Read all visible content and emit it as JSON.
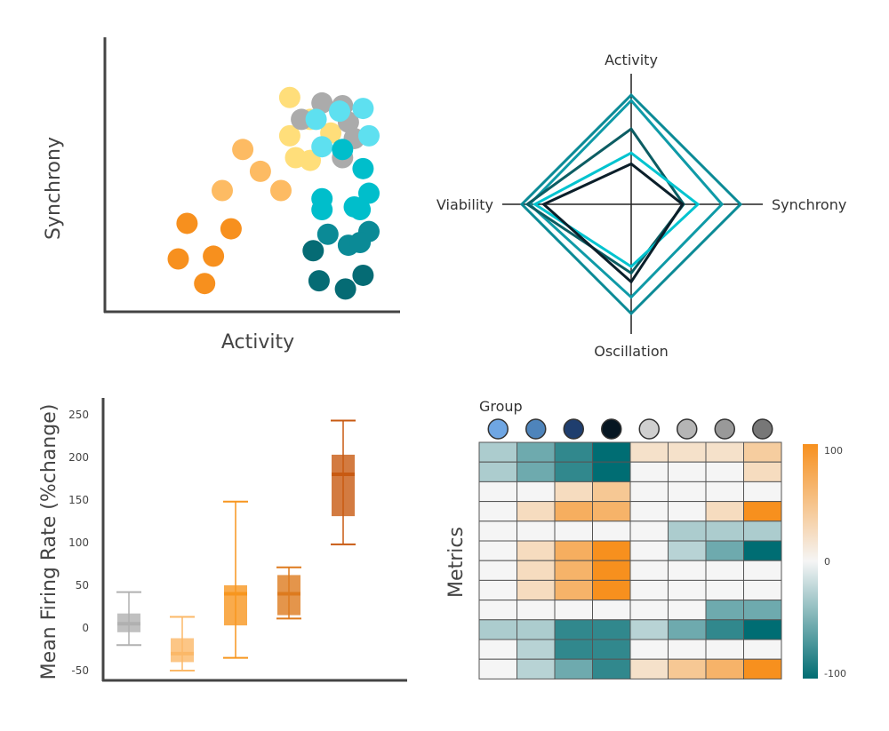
{
  "chart_data": [
    {
      "type": "scatter",
      "xlabel": "Activity",
      "ylabel": "Synchrony",
      "xlim": [
        0,
        10
      ],
      "ylim": [
        0,
        10
      ],
      "series": [
        {
          "color": "#F7901E",
          "points": [
            [
              2.8,
              3.2
            ],
            [
              4.3,
              3.0
            ],
            [
              2.5,
              1.9
            ],
            [
              3.7,
              2.0
            ],
            [
              3.4,
              1.0
            ]
          ]
        },
        {
          "color": "#FDBB63",
          "points": [
            [
              4.7,
              5.9
            ],
            [
              5.3,
              5.1
            ],
            [
              4.0,
              4.4
            ],
            [
              6.0,
              4.4
            ]
          ]
        },
        {
          "color": "#FFDE7A",
          "points": [
            [
              6.3,
              7.8
            ],
            [
              6.3,
              6.4
            ],
            [
              6.5,
              5.6
            ],
            [
              7.0,
              5.5
            ],
            [
              7.0,
              7.0
            ],
            [
              7.7,
              6.5
            ]
          ]
        },
        {
          "color": "#ABABAB",
          "points": [
            [
              7.4,
              7.6
            ],
            [
              8.1,
              7.5
            ],
            [
              6.7,
              7.0
            ],
            [
              8.3,
              6.9
            ],
            [
              8.5,
              6.3
            ],
            [
              8.1,
              5.6
            ]
          ]
        },
        {
          "color": "#5EE0F0",
          "points": [
            [
              7.2,
              7.0
            ],
            [
              8.0,
              7.3
            ],
            [
              8.8,
              7.4
            ],
            [
              9.0,
              6.4
            ],
            [
              7.4,
              6.0
            ]
          ]
        },
        {
          "color": "#00BECB",
          "points": [
            [
              8.1,
              5.9
            ],
            [
              8.8,
              5.2
            ],
            [
              9.0,
              4.3
            ],
            [
              7.4,
              4.1
            ],
            [
              7.4,
              3.7
            ],
            [
              8.5,
              3.8
            ],
            [
              8.7,
              3.7
            ]
          ]
        },
        {
          "color": "#0B8A96",
          "points": [
            [
              9.0,
              2.9
            ],
            [
              7.6,
              2.8
            ],
            [
              8.3,
              2.4
            ],
            [
              8.7,
              2.5
            ]
          ]
        },
        {
          "color": "#056B74",
          "points": [
            [
              7.1,
              2.2
            ],
            [
              8.8,
              1.3
            ],
            [
              7.3,
              1.1
            ],
            [
              8.2,
              0.8
            ]
          ]
        }
      ]
    },
    {
      "type": "radar",
      "axes": [
        "Activity",
        "Synchrony",
        "Oscillation",
        "Viability"
      ],
      "series": [
        {
          "color": "#0B8A96",
          "values": [
            1.0,
            1.0,
            1.0,
            1.0
          ]
        },
        {
          "color": "#0F9AA7",
          "values": [
            0.95,
            0.83,
            0.85,
            0.93
          ]
        },
        {
          "color": "#0C5D63",
          "values": [
            0.69,
            0.48,
            0.63,
            0.95
          ]
        },
        {
          "color": "#00C3CF",
          "values": [
            0.47,
            0.61,
            0.57,
            0.88
          ]
        },
        {
          "color": "#0B1F2A",
          "values": [
            0.37,
            0.47,
            0.71,
            0.8
          ]
        }
      ]
    },
    {
      "type": "box",
      "ylabel": "Mean Firing Rate (%change)",
      "ylim": [
        -55,
        255
      ],
      "yticks": [
        250,
        200,
        150,
        100,
        50,
        0,
        -50
      ],
      "series": [
        {
          "color": "#B0B0B0",
          "whisker_low": -20,
          "q1": -5,
          "median": 5,
          "q3": 17,
          "whisker_high": 42
        },
        {
          "color": "#FBB868",
          "whisker_low": -50,
          "q1": -40,
          "median": -30,
          "q3": -12,
          "whisker_high": 13
        },
        {
          "color": "#F7961F",
          "whisker_low": -35,
          "q1": 3,
          "median": 40,
          "q3": 50,
          "whisker_high": 148
        },
        {
          "color": "#DD7A1E",
          "whisker_low": 11,
          "q1": 15,
          "median": 40,
          "q3": 62,
          "whisker_high": 71
        },
        {
          "color": "#C85A12",
          "whisker_low": 98,
          "q1": 131,
          "median": 180,
          "q3": 203,
          "whisker_high": 243
        }
      ]
    },
    {
      "type": "heatmap",
      "title": "Group",
      "ylabel": "Metrics",
      "scale_min": -100,
      "scale_max": 100,
      "colorbar_labels": [
        "100",
        "0",
        "-100"
      ],
      "group_colors": [
        "#6FA6E3",
        "#4E84BB",
        "#1F3E6E",
        "#061622",
        "#CFCFCF",
        "#B5B5B5",
        "#999999",
        "#777777"
      ],
      "values": [
        [
          -30,
          -55,
          -80,
          -100,
          20,
          20,
          20,
          40
        ],
        [
          -30,
          -55,
          -80,
          -100,
          0,
          0,
          0,
          25
        ],
        [
          0,
          0,
          25,
          45,
          0,
          0,
          0,
          0
        ],
        [
          0,
          25,
          70,
          65,
          0,
          0,
          25,
          100
        ],
        [
          0,
          0,
          0,
          0,
          0,
          -30,
          -30,
          -30
        ],
        [
          0,
          25,
          70,
          100,
          0,
          -25,
          -55,
          -100
        ],
        [
          0,
          25,
          65,
          100,
          0,
          0,
          0,
          0
        ],
        [
          0,
          25,
          65,
          100,
          0,
          0,
          0,
          0
        ],
        [
          0,
          0,
          0,
          0,
          0,
          0,
          -55,
          -55
        ],
        [
          -30,
          -30,
          -80,
          -80,
          -25,
          -55,
          -80,
          -100
        ],
        [
          0,
          -25,
          -80,
          -80,
          0,
          0,
          0,
          0
        ],
        [
          0,
          -25,
          -55,
          -80,
          20,
          45,
          65,
          100
        ]
      ]
    }
  ]
}
